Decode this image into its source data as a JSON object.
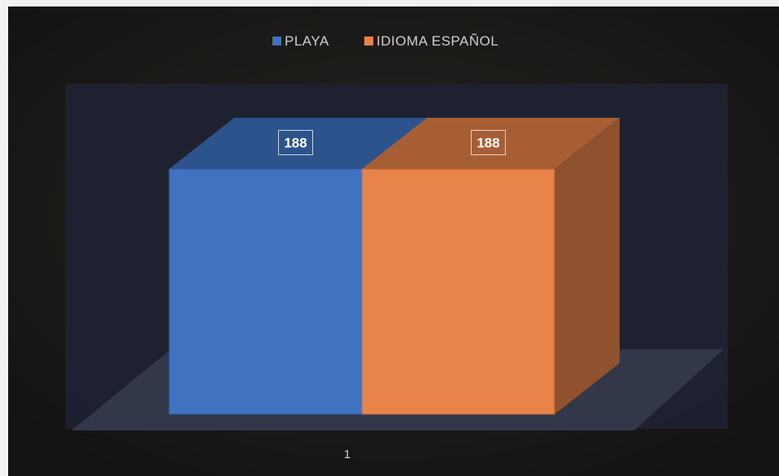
{
  "chart_data": {
    "type": "bar",
    "style": "3d-column",
    "categories": [
      "1"
    ],
    "series": [
      {
        "name": "PLAYA",
        "values": [
          188
        ],
        "color": "#3f73c2"
      },
      {
        "name": "IDIOMA  ESPAÑOL",
        "values": [
          188
        ],
        "color": "#e8834a"
      }
    ],
    "data_labels": [
      "188",
      "188"
    ],
    "legend_position": "top-center",
    "grid": false,
    "ylim": [
      0,
      188
    ]
  },
  "colors": {
    "background": "#1d1c1a",
    "plot_area": "#1e2233",
    "floor": "#33374a",
    "text": "#cfcfcf"
  }
}
